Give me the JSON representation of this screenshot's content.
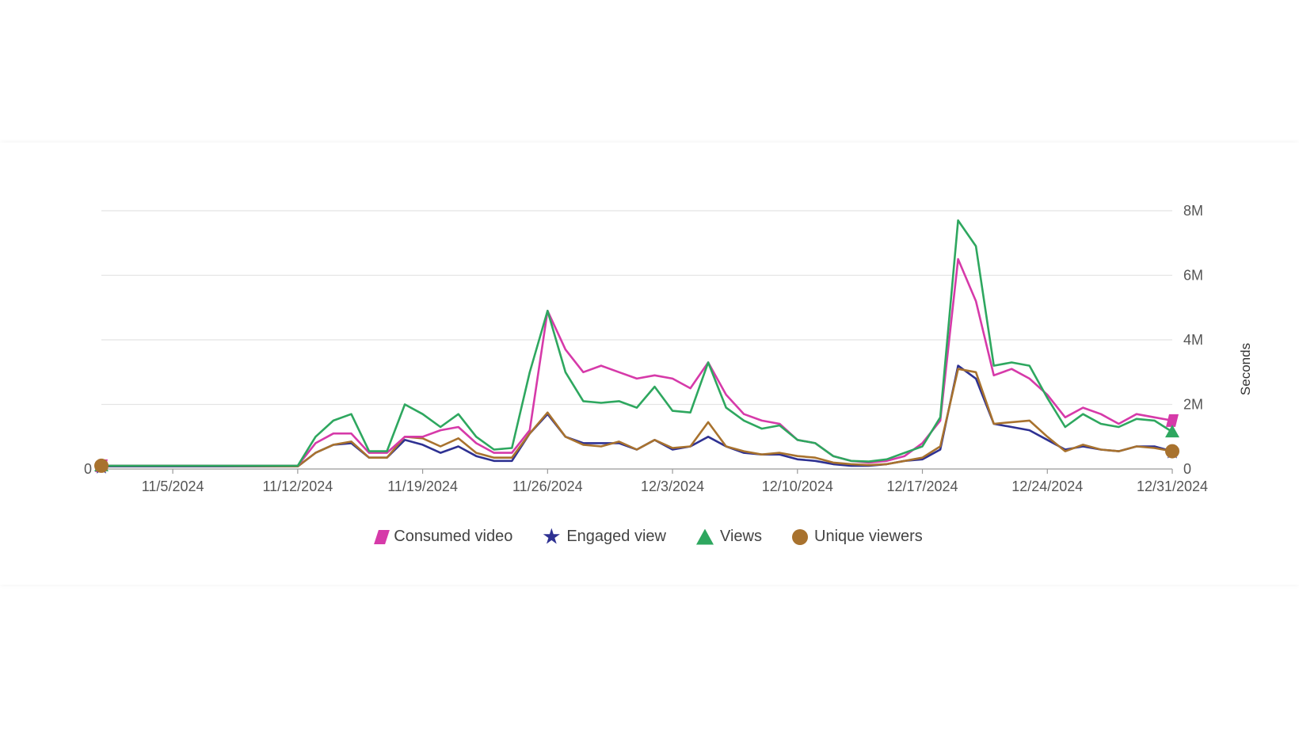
{
  "chart_data": {
    "type": "line",
    "y2label": "Seconds",
    "xlim": [
      "2024-11-01",
      "2024-12-31"
    ],
    "ylim": [
      0,
      8000000
    ],
    "grid": true,
    "legend_position": "bottom",
    "x_ticks": [
      "11/5/2024",
      "11/12/2024",
      "11/19/2024",
      "11/26/2024",
      "12/3/2024",
      "12/10/2024",
      "12/17/2024",
      "12/24/2024",
      "12/31/2024"
    ],
    "left_ticks": [
      "0"
    ],
    "right_ticks": [
      "0",
      "2M",
      "4M",
      "6M",
      "8M"
    ],
    "series": [
      {
        "name": "Consumed video",
        "color": "#d63aa9",
        "marker": "parallelogram",
        "x": [
          "2024-11-01",
          "2024-11-05",
          "2024-11-12",
          "2024-11-13",
          "2024-11-14",
          "2024-11-15",
          "2024-11-16",
          "2024-11-17",
          "2024-11-18",
          "2024-11-19",
          "2024-11-20",
          "2024-11-21",
          "2024-11-22",
          "2024-11-23",
          "2024-11-24",
          "2024-11-25",
          "2024-11-26",
          "2024-11-27",
          "2024-11-28",
          "2024-11-29",
          "2024-11-30",
          "2024-12-01",
          "2024-12-02",
          "2024-12-03",
          "2024-12-04",
          "2024-12-05",
          "2024-12-06",
          "2024-12-07",
          "2024-12-08",
          "2024-12-09",
          "2024-12-10",
          "2024-12-11",
          "2024-12-12",
          "2024-12-13",
          "2024-12-14",
          "2024-12-15",
          "2024-12-16",
          "2024-12-17",
          "2024-12-18",
          "2024-12-19",
          "2024-12-20",
          "2024-12-21",
          "2024-12-22",
          "2024-12-23",
          "2024-12-24",
          "2024-12-25",
          "2024-12-26",
          "2024-12-27",
          "2024-12-28",
          "2024-12-29",
          "2024-12-30",
          "2024-12-31"
        ],
        "values": [
          100000,
          100000,
          100000,
          800000,
          1100000,
          1100000,
          500000,
          500000,
          1000000,
          1000000,
          1200000,
          1300000,
          800000,
          500000,
          500000,
          1200000,
          4900000,
          3700000,
          3000000,
          3200000,
          3000000,
          2800000,
          2900000,
          2800000,
          2500000,
          3300000,
          2300000,
          1700000,
          1500000,
          1400000,
          900000,
          800000,
          400000,
          250000,
          200000,
          250000,
          400000,
          800000,
          1500000,
          6500000,
          5200000,
          2900000,
          3100000,
          2800000,
          2300000,
          1600000,
          1900000,
          1700000,
          1400000,
          1700000,
          1600000,
          1500000
        ]
      },
      {
        "name": "Engaged view",
        "color": "#2e3192",
        "marker": "star",
        "x": [
          "2024-11-01",
          "2024-11-05",
          "2024-11-12",
          "2024-11-13",
          "2024-11-14",
          "2024-11-15",
          "2024-11-16",
          "2024-11-17",
          "2024-11-18",
          "2024-11-19",
          "2024-11-20",
          "2024-11-21",
          "2024-11-22",
          "2024-11-23",
          "2024-11-24",
          "2024-11-25",
          "2024-11-26",
          "2024-11-27",
          "2024-11-28",
          "2024-11-29",
          "2024-11-30",
          "2024-12-01",
          "2024-12-02",
          "2024-12-03",
          "2024-12-04",
          "2024-12-05",
          "2024-12-06",
          "2024-12-07",
          "2024-12-08",
          "2024-12-09",
          "2024-12-10",
          "2024-12-11",
          "2024-12-12",
          "2024-12-13",
          "2024-12-14",
          "2024-12-15",
          "2024-12-16",
          "2024-12-17",
          "2024-12-18",
          "2024-12-19",
          "2024-12-20",
          "2024-12-21",
          "2024-12-22",
          "2024-12-23",
          "2024-12-24",
          "2024-12-25",
          "2024-12-26",
          "2024-12-27",
          "2024-12-28",
          "2024-12-29",
          "2024-12-30",
          "2024-12-31"
        ],
        "values": [
          80000,
          80000,
          80000,
          500000,
          750000,
          800000,
          350000,
          350000,
          900000,
          750000,
          500000,
          700000,
          400000,
          250000,
          250000,
          1100000,
          1700000,
          1000000,
          800000,
          800000,
          800000,
          600000,
          900000,
          600000,
          700000,
          1000000,
          700000,
          500000,
          450000,
          450000,
          300000,
          250000,
          150000,
          100000,
          100000,
          150000,
          250000,
          300000,
          600000,
          3200000,
          2800000,
          1400000,
          1300000,
          1200000,
          900000,
          600000,
          700000,
          600000,
          550000,
          700000,
          700000,
          550000
        ]
      },
      {
        "name": "Views",
        "color": "#2ea75f",
        "marker": "triangle",
        "x": [
          "2024-11-01",
          "2024-11-05",
          "2024-11-12",
          "2024-11-13",
          "2024-11-14",
          "2024-11-15",
          "2024-11-16",
          "2024-11-17",
          "2024-11-18",
          "2024-11-19",
          "2024-11-20",
          "2024-11-21",
          "2024-11-22",
          "2024-11-23",
          "2024-11-24",
          "2024-11-25",
          "2024-11-26",
          "2024-11-27",
          "2024-11-28",
          "2024-11-29",
          "2024-11-30",
          "2024-12-01",
          "2024-12-02",
          "2024-12-03",
          "2024-12-04",
          "2024-12-05",
          "2024-12-06",
          "2024-12-07",
          "2024-12-08",
          "2024-12-09",
          "2024-12-10",
          "2024-12-11",
          "2024-12-12",
          "2024-12-13",
          "2024-12-14",
          "2024-12-15",
          "2024-12-16",
          "2024-12-17",
          "2024-12-18",
          "2024-12-19",
          "2024-12-20",
          "2024-12-21",
          "2024-12-22",
          "2024-12-23",
          "2024-12-24",
          "2024-12-25",
          "2024-12-26",
          "2024-12-27",
          "2024-12-28",
          "2024-12-29",
          "2024-12-30",
          "2024-12-31"
        ],
        "values": [
          100000,
          100000,
          100000,
          1000000,
          1500000,
          1700000,
          550000,
          550000,
          2000000,
          1700000,
          1300000,
          1700000,
          1000000,
          600000,
          650000,
          3000000,
          4900000,
          3000000,
          2100000,
          2050000,
          2100000,
          1900000,
          2550000,
          1800000,
          1750000,
          3300000,
          1900000,
          1500000,
          1250000,
          1350000,
          900000,
          800000,
          400000,
          250000,
          230000,
          300000,
          500000,
          700000,
          1600000,
          7700000,
          6900000,
          3200000,
          3300000,
          3200000,
          2200000,
          1300000,
          1700000,
          1400000,
          1300000,
          1550000,
          1500000,
          1150000
        ]
      },
      {
        "name": "Unique viewers",
        "color": "#a8722e",
        "marker": "circle",
        "x": [
          "2024-11-01",
          "2024-11-05",
          "2024-11-12",
          "2024-11-13",
          "2024-11-14",
          "2024-11-15",
          "2024-11-16",
          "2024-11-17",
          "2024-11-18",
          "2024-11-19",
          "2024-11-20",
          "2024-11-21",
          "2024-11-22",
          "2024-11-23",
          "2024-11-24",
          "2024-11-25",
          "2024-11-26",
          "2024-11-27",
          "2024-11-28",
          "2024-11-29",
          "2024-11-30",
          "2024-12-01",
          "2024-12-02",
          "2024-12-03",
          "2024-12-04",
          "2024-12-05",
          "2024-12-06",
          "2024-12-07",
          "2024-12-08",
          "2024-12-09",
          "2024-12-10",
          "2024-12-11",
          "2024-12-12",
          "2024-12-13",
          "2024-12-14",
          "2024-12-15",
          "2024-12-16",
          "2024-12-17",
          "2024-12-18",
          "2024-12-19",
          "2024-12-20",
          "2024-12-21",
          "2024-12-22",
          "2024-12-23",
          "2024-12-24",
          "2024-12-25",
          "2024-12-26",
          "2024-12-27",
          "2024-12-28",
          "2024-12-29",
          "2024-12-30",
          "2024-12-31"
        ],
        "values": [
          100000,
          100000,
          80000,
          500000,
          750000,
          850000,
          350000,
          350000,
          1000000,
          950000,
          700000,
          950000,
          500000,
          350000,
          350000,
          1100000,
          1750000,
          1000000,
          750000,
          700000,
          850000,
          600000,
          900000,
          650000,
          700000,
          1450000,
          700000,
          550000,
          450000,
          500000,
          400000,
          350000,
          200000,
          150000,
          120000,
          150000,
          250000,
          350000,
          700000,
          3100000,
          3000000,
          1400000,
          1450000,
          1500000,
          1000000,
          550000,
          750000,
          600000,
          550000,
          700000,
          650000,
          550000
        ]
      }
    ]
  }
}
